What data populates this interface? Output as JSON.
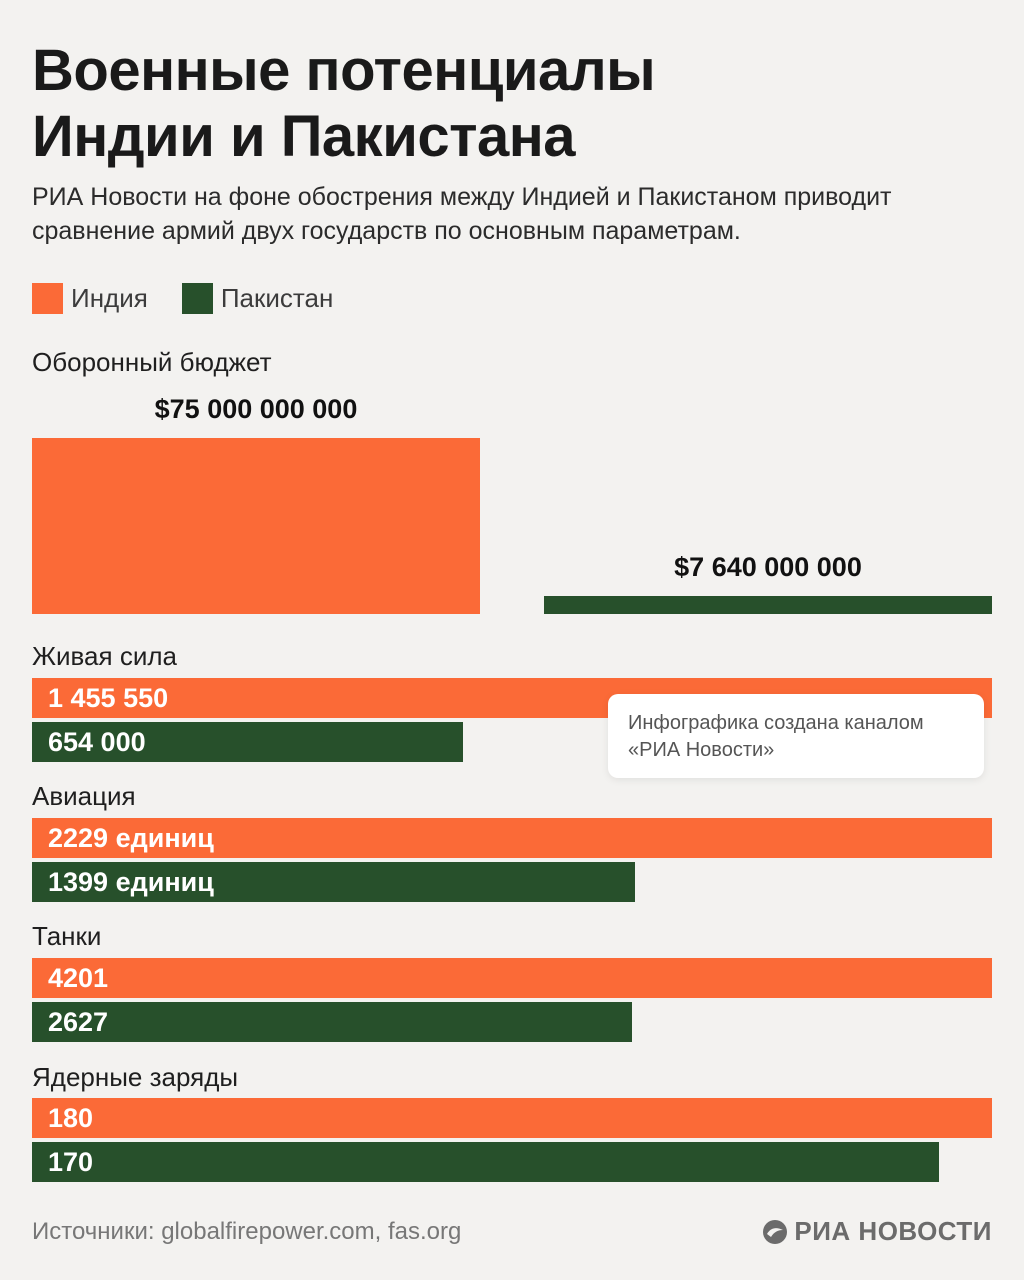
{
  "header": {
    "title_line1": "Военные потенциалы",
    "title_line2": "Индии и Пакистана",
    "subtitle_line1": "РИА Новости на фоне обострения между Индией и Пакистаном приводит",
    "subtitle_line2": "сравнение армий двух государств по основным параметрам."
  },
  "colors": {
    "india": "#fb6a37",
    "pakistan": "#27502b"
  },
  "legend": [
    {
      "name": "Индия",
      "color": "#fb6a37"
    },
    {
      "name": "Пакистан",
      "color": "#27502b"
    }
  ],
  "chart_data": {
    "type": "bar",
    "series": [
      {
        "name": "Индия",
        "color": "#fb6a37"
      },
      {
        "name": "Пакистан",
        "color": "#27502b"
      }
    ],
    "budget": {
      "label": "Оборонный бюджет",
      "india": {
        "value": 75000000000,
        "label": "$75 000 000 000"
      },
      "pakistan": {
        "value": 7640000000,
        "label": "$7 640 000 000"
      }
    },
    "categories": [
      {
        "label": "Живая сила",
        "india": {
          "value": 1455550,
          "label": "1 455 550"
        },
        "pakistan": {
          "value": 654000,
          "label": "654 000"
        }
      },
      {
        "label": "Авиация",
        "india": {
          "value": 2229,
          "label": "2229 единиц"
        },
        "pakistan": {
          "value": 1399,
          "label": "1399 единиц"
        }
      },
      {
        "label": "Танки",
        "india": {
          "value": 4201,
          "label": "4201"
        },
        "pakistan": {
          "value": 2627,
          "label": "2627"
        }
      },
      {
        "label": "Ядерные заряды",
        "india": {
          "value": 180,
          "label": "180"
        },
        "pakistan": {
          "value": 170,
          "label": "170"
        }
      }
    ]
  },
  "note": {
    "line1": "Инфографика создана каналом",
    "line2": "«РИА Новости»"
  },
  "footer": {
    "source": "Источники: globalfirepower.com, fas.org",
    "brand": "РИА НОВОСТИ"
  }
}
